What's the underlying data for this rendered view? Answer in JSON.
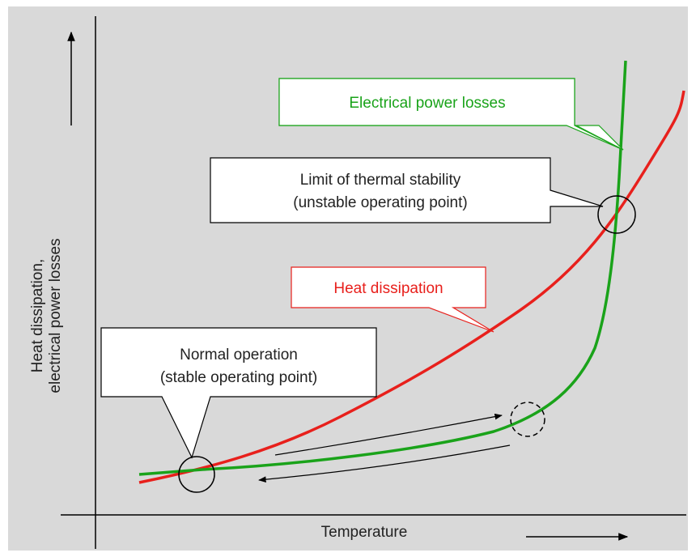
{
  "y_axis_label": [
    "Heat dissipation,",
    "electrical power losses"
  ],
  "x_axis_label": "Temperature",
  "callouts": [
    {
      "lines": [
        "Electrical power losses"
      ]
    },
    {
      "lines": [
        "Limit of thermal stability",
        "(unstable operating point)"
      ]
    },
    {
      "lines": [
        "Heat dissipation"
      ]
    },
    {
      "lines": [
        "Normal operation",
        "(stable operating point)"
      ]
    }
  ]
}
